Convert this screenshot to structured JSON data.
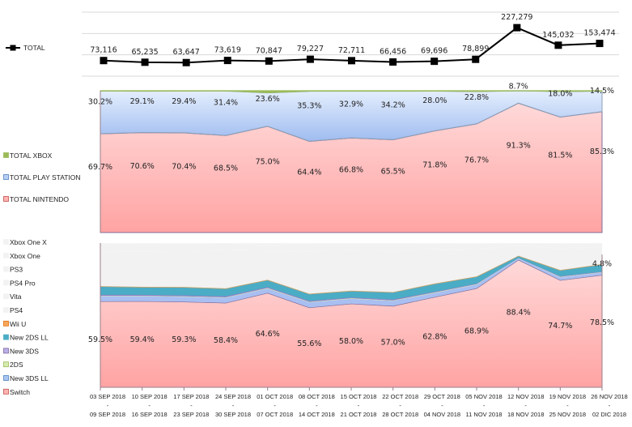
{
  "chart_data": [
    {
      "type": "line",
      "title": "",
      "xlabel": "",
      "ylabel": "",
      "ylim": [
        0,
        300000
      ],
      "grid": true,
      "legend": "left",
      "series": [
        {
          "name": "TOTAL",
          "color": "#000000",
          "values": [
            73116,
            65235,
            63647,
            73619,
            70847,
            79227,
            72711,
            66456,
            69696,
            78899,
            227279,
            145032,
            153474
          ],
          "labels": [
            "73,116",
            "65,235",
            "63,647",
            "73,619",
            "70,847",
            "79,227",
            "72,711",
            "66,456",
            "69,696",
            "78,899",
            "227,279",
            "145,032",
            "153,474"
          ]
        }
      ]
    },
    {
      "type": "area",
      "stacked": "percent",
      "title": "",
      "ylim": [
        0,
        100
      ],
      "legend": "left",
      "series": [
        {
          "name": "TOTAL NINTENDO",
          "color": "#ffb3b3",
          "values": [
            69.7,
            70.6,
            70.4,
            68.5,
            75.0,
            64.4,
            66.8,
            65.5,
            71.8,
            76.7,
            91.3,
            81.5,
            85.3
          ],
          "labels": [
            "69.7%",
            "70.6%",
            "70.4%",
            "68.5%",
            "75.0%",
            "64.4%",
            "66.8%",
            "65.5%",
            "71.8%",
            "76.7%",
            "91.3%",
            "81.5%",
            "85.3%"
          ]
        },
        {
          "name": "TOTAL PLAY STATION",
          "color": "#b8cff5",
          "values": [
            30.2,
            29.1,
            29.4,
            31.4,
            23.6,
            35.3,
            32.9,
            34.2,
            28.0,
            22.8,
            8.7,
            18.0,
            14.5
          ],
          "labels": [
            "30.2%",
            "29.1%",
            "29.4%",
            "31.4%",
            "23.6%",
            "35.3%",
            "32.9%",
            "34.2%",
            "28.0%",
            "22.8%",
            "8.7%",
            "18.0%",
            "14.5%"
          ]
        },
        {
          "name": "TOTAL XBOX",
          "color": "#9bbb59",
          "values": [
            0.1,
            0.3,
            0.2,
            0.1,
            1.4,
            0.3,
            0.3,
            0.3,
            0.2,
            0.5,
            0.0,
            0.5,
            0.2
          ]
        }
      ]
    },
    {
      "type": "area",
      "stacked": "percent",
      "title": "",
      "ylim": [
        0,
        100
      ],
      "legend": "left",
      "series": [
        {
          "name": "Switch",
          "color": "#ffb3b3",
          "values": [
            59.5,
            59.4,
            59.3,
            58.4,
            64.6,
            55.6,
            58.0,
            57.0,
            62.8,
            68.9,
            88.4,
            74.7,
            78.5
          ],
          "labels": [
            "59.5%",
            "59.4%",
            "59.3%",
            "58.4%",
            "64.6%",
            "55.6%",
            "58.0%",
            "57.0%",
            "62.8%",
            "68.9%",
            "88.4%",
            "74.7%",
            "78.5%"
          ]
        },
        {
          "name": "New 3DS LL",
          "color": "#a9bff2",
          "values": [
            3.5,
            3.4,
            3.4,
            3.5,
            3.0,
            3.6,
            3.4,
            3.5,
            2.8,
            2.5,
            1.0,
            2.0,
            1.8
          ]
        },
        {
          "name": "2DS",
          "color": "#c8e2a0",
          "values": [
            0.3,
            0.3,
            0.3,
            0.3,
            0.3,
            0.3,
            0.3,
            0.3,
            0.3,
            0.3,
            0.1,
            0.3,
            0.2
          ]
        },
        {
          "name": "New 3DS",
          "color": "#8e84c8",
          "values": [
            1.0,
            1.0,
            1.0,
            1.0,
            0.9,
            1.0,
            0.9,
            1.0,
            0.8,
            0.7,
            0.4,
            0.7,
            0.6
          ]
        },
        {
          "name": "New 2DS LL",
          "color": "#4bacc6",
          "values": [
            5.5,
            5.0,
            5.3,
            5.0,
            4.6,
            4.5,
            4.2,
            4.7,
            5.2,
            4.5,
            1.2,
            3.8,
            4.8
          ],
          "labels": [
            "",
            "",
            "",
            "",
            "",
            "",
            "",
            "",
            "",
            "",
            "",
            "",
            "4.8%"
          ]
        },
        {
          "name": "Wii U",
          "color": "#f5a85a",
          "values": [
            0.2,
            0.2,
            0.2,
            0.2,
            0.2,
            0.2,
            0.2,
            0.2,
            0.2,
            0.2,
            0.1,
            0.2,
            0.2
          ]
        },
        {
          "name": "PS4",
          "color": "#f2f2f2",
          "values": [
            24.0,
            24.5,
            24.5,
            26.0,
            19.5,
            29.5,
            27.5,
            28.5,
            23.5,
            18.5,
            7.2,
            14.8,
            11.8
          ]
        },
        {
          "name": "Vita",
          "color": "#f2f2f2",
          "values": [
            0.5,
            0.5,
            0.5,
            0.5,
            0.5,
            0.5,
            0.5,
            0.5,
            0.5,
            0.5,
            0.2,
            0.5,
            0.4
          ]
        },
        {
          "name": "PS4 Pro",
          "color": "#f2f2f2",
          "values": [
            5.0,
            4.7,
            5.0,
            4.5,
            3.5,
            4.8,
            4.5,
            4.8,
            3.7,
            3.5,
            1.3,
            2.8,
            2.2
          ]
        },
        {
          "name": "PS3",
          "color": "#f2f2f2",
          "values": [
            0.2,
            0.2,
            0.2,
            0.2,
            0.2,
            0.2,
            0.2,
            0.2,
            0.2,
            0.2,
            0.1,
            0.2,
            0.1
          ]
        },
        {
          "name": "Xbox One",
          "color": "#f2f2f2",
          "values": [
            0.1,
            0.2,
            0.1,
            0.1,
            1.2,
            0.2,
            0.2,
            0.2,
            0.1,
            0.4,
            0.0,
            0.4,
            0.1
          ]
        },
        {
          "name": "Xbox One X",
          "color": "#f2f2f2",
          "values": [
            0.0,
            0.1,
            0.1,
            0.0,
            0.2,
            0.1,
            0.1,
            0.1,
            0.1,
            0.1,
            0.0,
            0.1,
            0.1
          ]
        }
      ]
    }
  ],
  "categories": [
    [
      "03 SEP 2018",
      "09 SEP 2018"
    ],
    [
      "10 SEP 2018",
      "16 SEP 2018"
    ],
    [
      "17 SEP 2018",
      "23 SEP 2018"
    ],
    [
      "24 SEP 2018",
      "30 SEP 2018"
    ],
    [
      "01 OCT 2018",
      "07 OCT 2018"
    ],
    [
      "08 OCT 2018",
      "14 OCT 2018"
    ],
    [
      "15 OCT 2018",
      "21 OCT 2018"
    ],
    [
      "22 OCT 2018",
      "28 OCT 2018"
    ],
    [
      "29 OCT 2018",
      "04 NOV 2018"
    ],
    [
      "05 NOV 2018",
      "11 NOV 2018"
    ],
    [
      "12 NOV 2018",
      "18 NOV 2018"
    ],
    [
      "19 NOV 2018",
      "25 NOV 2018"
    ],
    [
      "26 NOV 2018",
      "02 DIC 2018"
    ]
  ],
  "tick_separator": "-",
  "legends": {
    "top": [
      "TOTAL"
    ],
    "middle": [
      "TOTAL XBOX",
      "TOTAL PLAY STATION",
      "TOTAL NINTENDO"
    ],
    "bottom": [
      "Xbox One X",
      "Xbox One",
      "PS3",
      "PS4 Pro",
      "Vita",
      "PS4",
      "Wii U",
      "New 2DS LL",
      "New 3DS",
      "2DS",
      "New 3DS LL",
      "Switch"
    ]
  },
  "legend_colors": {
    "TOTAL": "#000000",
    "TOTAL XBOX": "#9bbb59",
    "TOTAL PLAY STATION": "#b8cff5",
    "TOTAL NINTENDO": "#ffb3b3",
    "Xbox One X": "#f2f2f2",
    "Xbox One": "#f2f2f2",
    "PS3": "#f2f2f2",
    "PS4 Pro": "#f2f2f2",
    "Vita": "#f2f2f2",
    "PS4": "#f2f2f2",
    "Wii U": "#f5a85a",
    "New 2DS LL": "#4bacc6",
    "New 3DS": "#b9b0e6",
    "2DS": "#d4ecb0",
    "New 3DS LL": "#a9c6f2",
    "Switch": "#ffb3b3"
  },
  "legend_borders": {
    "TOTAL XBOX": "#9bbb59",
    "TOTAL PLAY STATION": "#4f81bd",
    "TOTAL NINTENDO": "#c0504d",
    "Wii U": "#e46c0a",
    "New 2DS LL": "#4bacc6",
    "New 3DS": "#8064a2",
    "2DS": "#9bbb59",
    "New 3DS LL": "#4f81bd",
    "Switch": "#c0504d",
    "Xbox One X": "#f2f2f2",
    "Xbox One": "#f2f2f2",
    "PS3": "#f2f2f2",
    "PS4 Pro": "#f2f2f2",
    "Vita": "#f2f2f2",
    "PS4": "#f2f2f2"
  }
}
